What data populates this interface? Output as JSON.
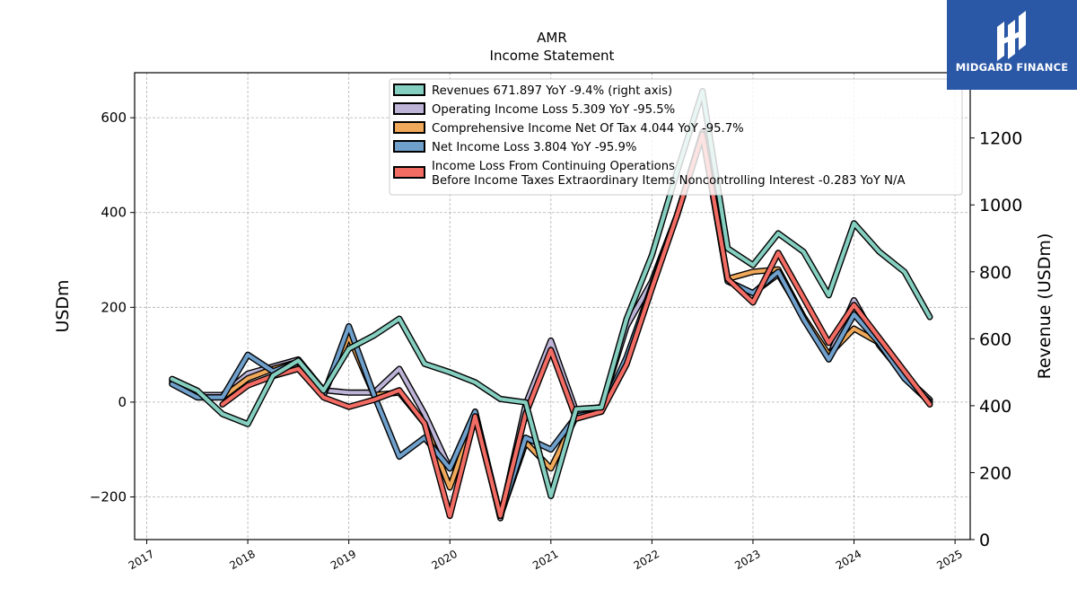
{
  "chart_data": {
    "type": "line",
    "title": "AMR",
    "subtitle": "Income Statement",
    "ylabel": "USDm",
    "ylabel_right": "Revenue (USDm)",
    "ylim": [
      -290,
      695
    ],
    "ylim_right": [
      0,
      1395
    ],
    "xlim": [
      2016.88,
      2025.15
    ],
    "yticks": [
      -200,
      0,
      200,
      400,
      600
    ],
    "ytick_labels": [
      "−200",
      "0",
      "200",
      "400",
      "600"
    ],
    "yticks_right": [
      0,
      200,
      400,
      600,
      800,
      1000,
      1200
    ],
    "xticks": [
      2017,
      2018,
      2019,
      2020,
      2021,
      2022,
      2023,
      2024,
      2025
    ],
    "xtick_labels": [
      "2017",
      "2018",
      "2019",
      "2020",
      "2021",
      "2022",
      "2023",
      "2024",
      "2025"
    ],
    "grid": true,
    "legend_position": "top-center",
    "x": [
      2017.25,
      2017.5,
      2017.75,
      2018.0,
      2018.25,
      2018.5,
      2018.75,
      2019.0,
      2019.25,
      2019.5,
      2019.75,
      2020.0,
      2020.25,
      2020.5,
      2020.75,
      2021.0,
      2021.25,
      2021.5,
      2021.75,
      2022.0,
      2022.25,
      2022.5,
      2022.75,
      2023.0,
      2023.25,
      2023.5,
      2023.75,
      2024.0,
      2024.25,
      2024.5,
      2024.75
    ],
    "series": [
      {
        "name": "Operating Income Loss",
        "legend": "Operating Income Loss  5.309 YoY -95.5%",
        "color": "#bcb3d6",
        "axis": "left",
        "values": [
          45,
          15,
          15,
          60,
          75,
          90,
          25,
          20,
          20,
          70,
          -25,
          -140,
          -20,
          -245,
          -5,
          130,
          -20,
          -10,
          160,
          255,
          395,
          570,
          255,
          230,
          270,
          180,
          95,
          215,
          120,
          55,
          5
        ]
      },
      {
        "name": "Comprehensive Income Net Of Tax",
        "legend": "Comprehensive Income Net Of Tax  4.044 YoY -95.7%",
        "color": "#f0a95a",
        "axis": "left",
        "values": [
          40,
          10,
          10,
          50,
          70,
          85,
          15,
          140,
          15,
          20,
          -45,
          -180,
          -30,
          -240,
          -85,
          -140,
          -30,
          -20,
          90,
          245,
          395,
          565,
          260,
          275,
          280,
          180,
          100,
          155,
          125,
          50,
          0
        ]
      },
      {
        "name": "Net Income Loss",
        "legend": "Net Income Loss  3.804 YoY -95.9%",
        "color": "#6f9fcb",
        "axis": "left",
        "values": [
          38,
          10,
          10,
          100,
          65,
          85,
          15,
          160,
          15,
          -115,
          -75,
          -140,
          -20,
          -240,
          -75,
          -100,
          -30,
          -20,
          95,
          245,
          395,
          565,
          255,
          230,
          275,
          175,
          90,
          185,
          125,
          50,
          0
        ]
      },
      {
        "name": "Income Loss From Continuing Operations Before Income Taxes Extraordinary Items Noncontrolling Interest",
        "legend": "Income Loss From Continuing Operations\nBefore Income Taxes Extraordinary Items Noncontrolling Interest  -0.283 YoY N/A",
        "color": "#f26c64",
        "axis": "left",
        "values": [
          null,
          null,
          -5,
          35,
          55,
          70,
          10,
          -10,
          5,
          25,
          -45,
          -240,
          -30,
          -240,
          -25,
          110,
          -35,
          -20,
          80,
          240,
          395,
          565,
          260,
          210,
          315,
          220,
          125,
          205,
          135,
          65,
          -5
        ]
      },
      {
        "name": "Revenues",
        "legend": "Revenues  671.897 YoY -9.4% (right axis)",
        "color": "#85cfc0",
        "axis": "right",
        "values": [
          480,
          445,
          375,
          345,
          490,
          535,
          445,
          570,
          610,
          660,
          525,
          500,
          470,
          420,
          410,
          130,
          390,
          395,
          660,
          850,
          1100,
          1340,
          870,
          820,
          915,
          860,
          730,
          945,
          860,
          800,
          665
        ]
      }
    ]
  },
  "logo": {
    "name": "MIDGARD FINANCE"
  }
}
